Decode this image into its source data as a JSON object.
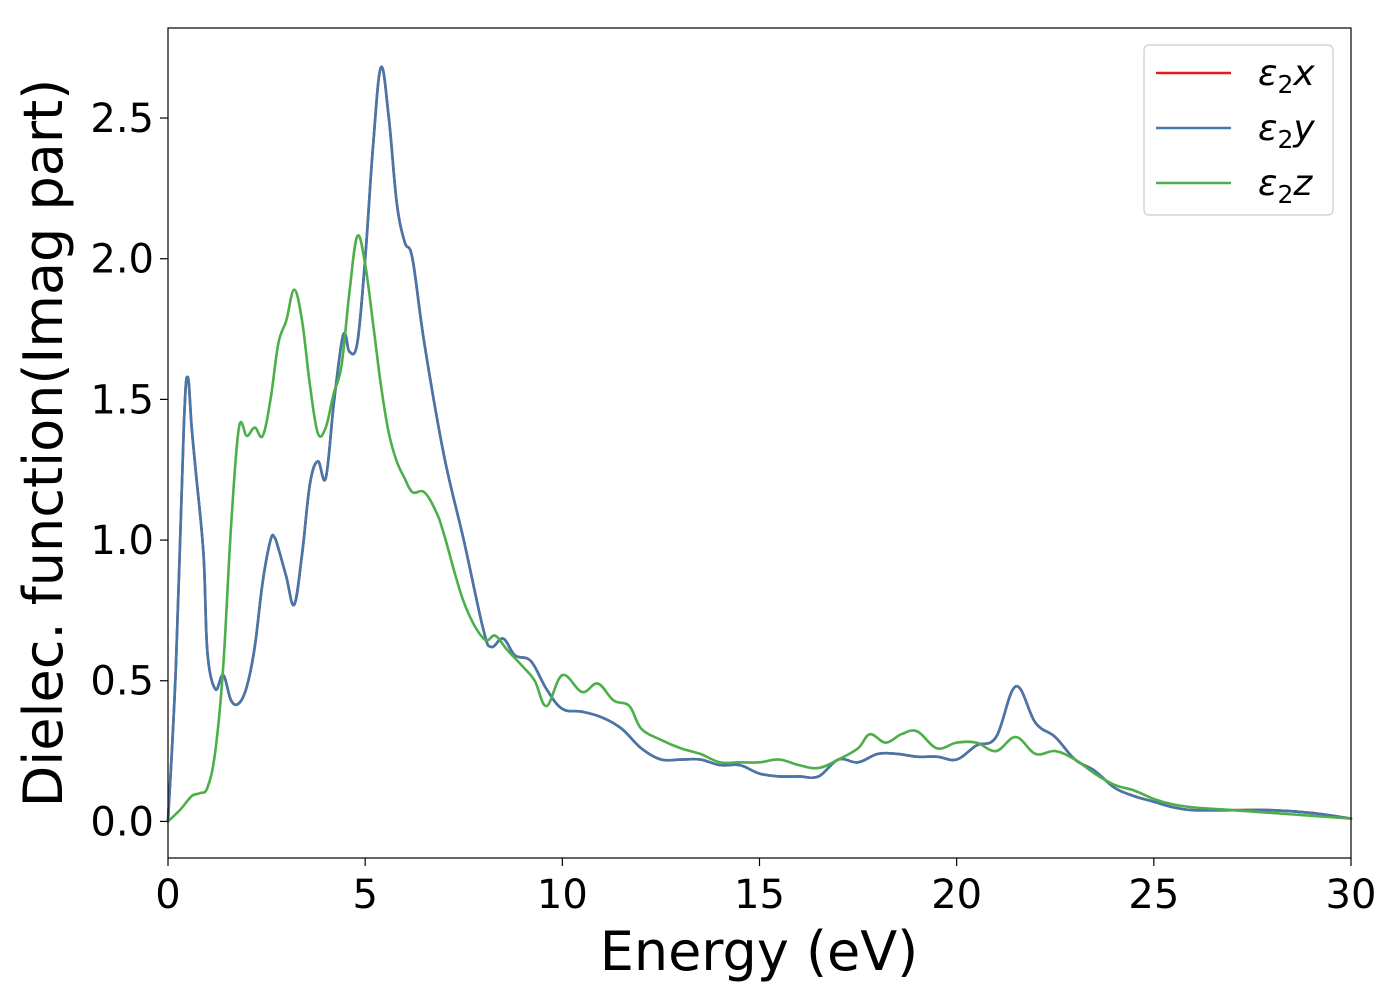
{
  "chart_data": {
    "type": "line",
    "title": "",
    "xlabel": "Energy (eV)",
    "ylabel": "Dielec. function(Imag part)",
    "xlim": [
      0,
      30
    ],
    "ylim": [
      -0.13,
      2.82
    ],
    "xticks": [
      0,
      5,
      10,
      15,
      20,
      25,
      30
    ],
    "yticks": [
      0.0,
      0.5,
      1.0,
      1.5,
      2.0,
      2.5
    ],
    "xtick_labels": [
      "0",
      "5",
      "10",
      "15",
      "20",
      "25",
      "30"
    ],
    "ytick_labels": [
      "0.0",
      "0.5",
      "1.0",
      "1.5",
      "2.0",
      "2.5"
    ],
    "grid": false,
    "legend_position": "top-right",
    "legend": {
      "entries": [
        {
          "base": "ε",
          "sub": "2",
          "comp": "x"
        },
        {
          "base": "ε",
          "sub": "2",
          "comp": "y"
        },
        {
          "base": "ε",
          "sub": "2",
          "comp": "z"
        }
      ]
    },
    "series": [
      {
        "name": "ε2x",
        "color": "#e41a1c",
        "x": [
          0,
          0.2,
          0.4,
          0.5,
          0.6,
          0.7,
          0.9,
          1.0,
          1.2,
          1.4,
          1.6,
          1.8,
          2.0,
          2.2,
          2.4,
          2.6,
          2.7,
          2.8,
          3.0,
          3.2,
          3.4,
          3.6,
          3.8,
          4.0,
          4.2,
          4.4,
          4.5,
          4.6,
          4.8,
          5.0,
          5.2,
          5.4,
          5.6,
          5.8,
          6.0,
          6.2,
          6.5,
          7.0,
          7.5,
          8.0,
          8.2,
          8.5,
          8.8,
          9.2,
          9.6,
          10.0,
          10.5,
          11.0,
          11.5,
          12.0,
          12.5,
          13.0,
          13.5,
          14.0,
          14.5,
          15.0,
          15.5,
          16.0,
          16.5,
          17.0,
          17.5,
          18.0,
          18.5,
          19.0,
          19.5,
          20.0,
          20.5,
          21.0,
          21.5,
          22.0,
          22.5,
          23.0,
          23.5,
          24.0,
          24.5,
          25.0,
          25.5,
          26.0,
          27.0,
          28.0,
          29.0,
          30.0
        ],
        "values": [
          0.0,
          0.55,
          1.4,
          1.58,
          1.4,
          1.25,
          0.95,
          0.6,
          0.47,
          0.52,
          0.43,
          0.42,
          0.48,
          0.62,
          0.85,
          1.0,
          1.01,
          0.97,
          0.87,
          0.77,
          0.95,
          1.2,
          1.28,
          1.22,
          1.48,
          1.7,
          1.73,
          1.67,
          1.7,
          2.0,
          2.4,
          2.68,
          2.5,
          2.2,
          2.06,
          2.0,
          1.7,
          1.3,
          1.0,
          0.68,
          0.62,
          0.65,
          0.59,
          0.57,
          0.47,
          0.4,
          0.39,
          0.37,
          0.33,
          0.26,
          0.22,
          0.22,
          0.22,
          0.2,
          0.2,
          0.17,
          0.16,
          0.16,
          0.16,
          0.22,
          0.21,
          0.24,
          0.24,
          0.23,
          0.23,
          0.22,
          0.27,
          0.3,
          0.48,
          0.35,
          0.3,
          0.22,
          0.18,
          0.12,
          0.09,
          0.07,
          0.05,
          0.04,
          0.04,
          0.04,
          0.03,
          0.01
        ]
      },
      {
        "name": "ε2y",
        "color": "#4477aa",
        "x": [
          0,
          0.2,
          0.4,
          0.5,
          0.6,
          0.7,
          0.9,
          1.0,
          1.2,
          1.4,
          1.6,
          1.8,
          2.0,
          2.2,
          2.4,
          2.6,
          2.7,
          2.8,
          3.0,
          3.2,
          3.4,
          3.6,
          3.8,
          4.0,
          4.2,
          4.4,
          4.5,
          4.6,
          4.8,
          5.0,
          5.2,
          5.4,
          5.6,
          5.8,
          6.0,
          6.2,
          6.5,
          7.0,
          7.5,
          8.0,
          8.2,
          8.5,
          8.8,
          9.2,
          9.6,
          10.0,
          10.5,
          11.0,
          11.5,
          12.0,
          12.5,
          13.0,
          13.5,
          14.0,
          14.5,
          15.0,
          15.5,
          16.0,
          16.5,
          17.0,
          17.5,
          18.0,
          18.5,
          19.0,
          19.5,
          20.0,
          20.5,
          21.0,
          21.5,
          22.0,
          22.5,
          23.0,
          23.5,
          24.0,
          24.5,
          25.0,
          25.5,
          26.0,
          27.0,
          28.0,
          29.0,
          30.0
        ],
        "values": [
          0.0,
          0.55,
          1.4,
          1.58,
          1.4,
          1.25,
          0.95,
          0.6,
          0.47,
          0.52,
          0.43,
          0.42,
          0.48,
          0.62,
          0.85,
          1.0,
          1.01,
          0.97,
          0.87,
          0.77,
          0.95,
          1.2,
          1.28,
          1.22,
          1.48,
          1.7,
          1.73,
          1.67,
          1.7,
          2.0,
          2.4,
          2.68,
          2.5,
          2.2,
          2.06,
          2.0,
          1.7,
          1.3,
          1.0,
          0.68,
          0.62,
          0.65,
          0.59,
          0.57,
          0.47,
          0.4,
          0.39,
          0.37,
          0.33,
          0.26,
          0.22,
          0.22,
          0.22,
          0.2,
          0.2,
          0.17,
          0.16,
          0.16,
          0.16,
          0.22,
          0.21,
          0.24,
          0.24,
          0.23,
          0.23,
          0.22,
          0.27,
          0.3,
          0.48,
          0.35,
          0.3,
          0.22,
          0.18,
          0.12,
          0.09,
          0.07,
          0.05,
          0.04,
          0.04,
          0.04,
          0.03,
          0.01
        ]
      },
      {
        "name": "ε2z",
        "color": "#4daf4a",
        "x": [
          0,
          0.3,
          0.6,
          0.8,
          1.0,
          1.2,
          1.4,
          1.6,
          1.8,
          2.0,
          2.2,
          2.4,
          2.6,
          2.8,
          3.0,
          3.2,
          3.4,
          3.6,
          3.8,
          4.0,
          4.2,
          4.4,
          4.6,
          4.8,
          5.0,
          5.2,
          5.4,
          5.6,
          5.8,
          6.0,
          6.2,
          6.5,
          6.8,
          7.0,
          7.5,
          8.0,
          8.3,
          8.6,
          9.0,
          9.3,
          9.6,
          10.0,
          10.5,
          10.9,
          11.3,
          11.7,
          12.0,
          12.5,
          13.0,
          13.5,
          14.0,
          14.5,
          15.0,
          15.5,
          16.0,
          16.5,
          17.0,
          17.5,
          17.8,
          18.2,
          18.6,
          19.0,
          19.5,
          20.0,
          20.5,
          21.0,
          21.5,
          22.0,
          22.5,
          23.0,
          23.5,
          24.0,
          24.5,
          25.0,
          25.5,
          26.0,
          27.0,
          28.0,
          29.0,
          30.0
        ],
        "values": [
          0.0,
          0.04,
          0.09,
          0.1,
          0.12,
          0.25,
          0.55,
          1.05,
          1.4,
          1.37,
          1.4,
          1.37,
          1.5,
          1.7,
          1.78,
          1.89,
          1.78,
          1.55,
          1.38,
          1.4,
          1.52,
          1.62,
          1.88,
          2.08,
          1.98,
          1.77,
          1.55,
          1.38,
          1.28,
          1.22,
          1.17,
          1.17,
          1.1,
          1.02,
          0.78,
          0.65,
          0.66,
          0.61,
          0.55,
          0.5,
          0.41,
          0.52,
          0.46,
          0.49,
          0.43,
          0.41,
          0.33,
          0.29,
          0.26,
          0.24,
          0.21,
          0.21,
          0.21,
          0.22,
          0.2,
          0.19,
          0.22,
          0.26,
          0.31,
          0.28,
          0.31,
          0.32,
          0.26,
          0.28,
          0.28,
          0.25,
          0.3,
          0.24,
          0.25,
          0.22,
          0.17,
          0.13,
          0.11,
          0.08,
          0.06,
          0.05,
          0.04,
          0.03,
          0.02,
          0.01
        ]
      }
    ]
  }
}
